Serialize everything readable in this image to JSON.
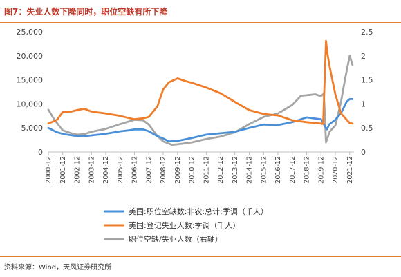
{
  "title": "图7：失业人数下降同时，职位空缺有所下降",
  "source": "资料来源：Wind，天风证券研究所",
  "colors": {
    "vacancies": "#4a90d9",
    "unemployed": "#ef7d2a",
    "ratio": "#a5a5a5",
    "accent": "#e8812e",
    "title": "#c0392b"
  },
  "chart_data": {
    "type": "line",
    "title": "",
    "xlabel": "",
    "ylabel": "",
    "x_tick_labels": [
      "2000-12",
      "2001-12",
      "2002-12",
      "2003-12",
      "2004-12",
      "2005-12",
      "2006-12",
      "2007-12",
      "2008-12",
      "2009-12",
      "2010-12",
      "2011-12",
      "2012-12",
      "2013-12",
      "2014-12",
      "2015-12",
      "2016-12",
      "2017-12",
      "2018-12",
      "2019-12",
      "2020-12",
      "2021-12"
    ],
    "y_left_ticks": [
      "0",
      "5,000",
      "10,000",
      "15,000",
      "20,000",
      "25,000"
    ],
    "y_right_ticks": [
      "0",
      "0.5",
      "1",
      "1.5",
      "2",
      "2.5"
    ],
    "ylim_left": [
      0,
      25000
    ],
    "ylim_right": [
      0,
      2.5
    ],
    "grid": false,
    "legend_position": "bottom",
    "series": [
      {
        "name": "美国:职位空缺数:非农:总计:季调（千人）",
        "axis": "left",
        "x": [
          2000.9,
          2001.5,
          2002.0,
          2002.9,
          2003.5,
          2004.9,
          2005.9,
          2006.5,
          2006.9,
          2007.5,
          2007.9,
          2008.5,
          2008.9,
          2009.3,
          2009.9,
          2010.9,
          2011.9,
          2012.9,
          2013.9,
          2014.9,
          2015.9,
          2016.9,
          2017.9,
          2018.9,
          2019.9,
          2020.3,
          2020.5,
          2020.9,
          2021.3,
          2021.7,
          2021.9,
          2022.1
        ],
        "values": [
          5000,
          4100,
          3700,
          3300,
          3300,
          3800,
          4300,
          4500,
          4700,
          4700,
          4300,
          3300,
          2800,
          2200,
          2300,
          2900,
          3600,
          3900,
          4200,
          5000,
          5700,
          5600,
          6200,
          7200,
          6800,
          4700,
          5800,
          6700,
          8100,
          10500,
          11000,
          11000
        ]
      },
      {
        "name": "美国:登记失业人数:季调（千人）",
        "axis": "left",
        "x": [
          2000.9,
          2001.5,
          2001.9,
          2002.5,
          2002.9,
          2003.4,
          2003.9,
          2004.9,
          2005.9,
          2006.9,
          2007.5,
          2007.9,
          2008.5,
          2008.9,
          2009.3,
          2009.9,
          2010.5,
          2010.9,
          2011.9,
          2012.9,
          2013.9,
          2014.9,
          2015.9,
          2016.9,
          2017.9,
          2018.9,
          2019.9,
          2020.05,
          2020.25,
          2020.35,
          2020.5,
          2020.9,
          2021.3,
          2021.9,
          2022.1
        ],
        "values": [
          5900,
          6700,
          8300,
          8400,
          8700,
          9000,
          8400,
          8000,
          7500,
          6800,
          7000,
          7300,
          9500,
          13000,
          14500,
          15300,
          14700,
          14400,
          13400,
          12200,
          10400,
          8700,
          7900,
          7600,
          6600,
          6200,
          5900,
          5800,
          23100,
          20500,
          17800,
          12000,
          8000,
          6000,
          5900
        ]
      },
      {
        "name": "职位空缺/失业人数（右轴）",
        "axis": "right",
        "x": [
          2000.9,
          2001.3,
          2001.9,
          2002.5,
          2002.9,
          2003.4,
          2003.9,
          2004.9,
          2005.9,
          2006.9,
          2007.5,
          2007.9,
          2008.5,
          2008.9,
          2009.5,
          2009.9,
          2010.9,
          2011.9,
          2012.9,
          2013.9,
          2014.9,
          2015.9,
          2016.9,
          2017.9,
          2018.5,
          2018.9,
          2019.5,
          2019.9,
          2020.1,
          2020.25,
          2020.5,
          2020.9,
          2021.3,
          2021.6,
          2021.9,
          2022.1
        ],
        "values": [
          0.88,
          0.68,
          0.45,
          0.39,
          0.36,
          0.37,
          0.42,
          0.48,
          0.58,
          0.67,
          0.66,
          0.57,
          0.33,
          0.22,
          0.15,
          0.16,
          0.2,
          0.27,
          0.32,
          0.41,
          0.58,
          0.73,
          0.8,
          0.98,
          1.17,
          1.18,
          1.2,
          1.16,
          1.22,
          0.2,
          0.42,
          0.55,
          1.05,
          1.55,
          2.0,
          1.81
        ]
      }
    ]
  }
}
